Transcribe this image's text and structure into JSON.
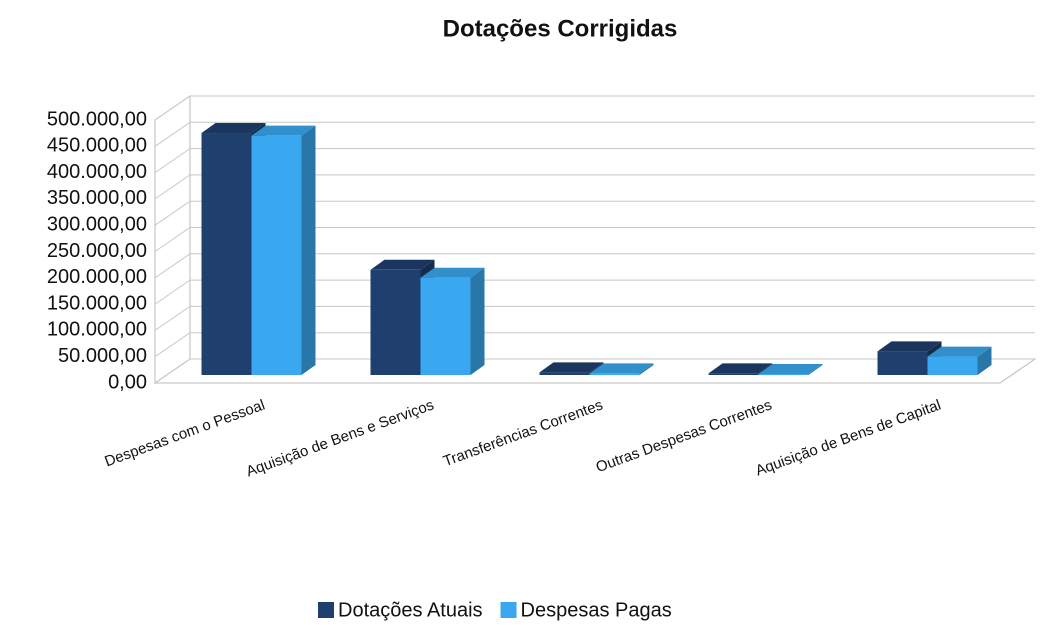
{
  "chart_data": {
    "type": "bar3d",
    "title": "Dotações Corrigidas",
    "categories": [
      "Despesas com o Pessoal",
      "Aquisição de Bens e Serviços",
      "Transferências Correntes",
      "Outras Despesas Correntes",
      "Aquisição de Bens de Capital"
    ],
    "series": [
      {
        "name": "Dotações Atuais",
        "color": "#1f3f6e",
        "values": [
          460000,
          200000,
          5000,
          3000,
          45000
        ]
      },
      {
        "name": "Despesas Pagas",
        "color": "#3aa8f0",
        "values": [
          455000,
          185000,
          3000,
          2000,
          35000
        ]
      }
    ],
    "ylim": [
      0,
      500000
    ],
    "yticks": [
      {
        "value": 0,
        "label": "0,00"
      },
      {
        "value": 50000,
        "label": "50.000,00"
      },
      {
        "value": 100000,
        "label": "100.000,00"
      },
      {
        "value": 150000,
        "label": "150.000,00"
      },
      {
        "value": 200000,
        "label": "200.000,00"
      },
      {
        "value": 250000,
        "label": "250.000,00"
      },
      {
        "value": 300000,
        "label": "300.000,00"
      },
      {
        "value": 350000,
        "label": "350.000,00"
      },
      {
        "value": 400000,
        "label": "400.000,00"
      },
      {
        "value": 450000,
        "label": "450.000,00"
      },
      {
        "value": 500000,
        "label": "500.000,00"
      }
    ],
    "grid": true,
    "legend": "bottom"
  }
}
